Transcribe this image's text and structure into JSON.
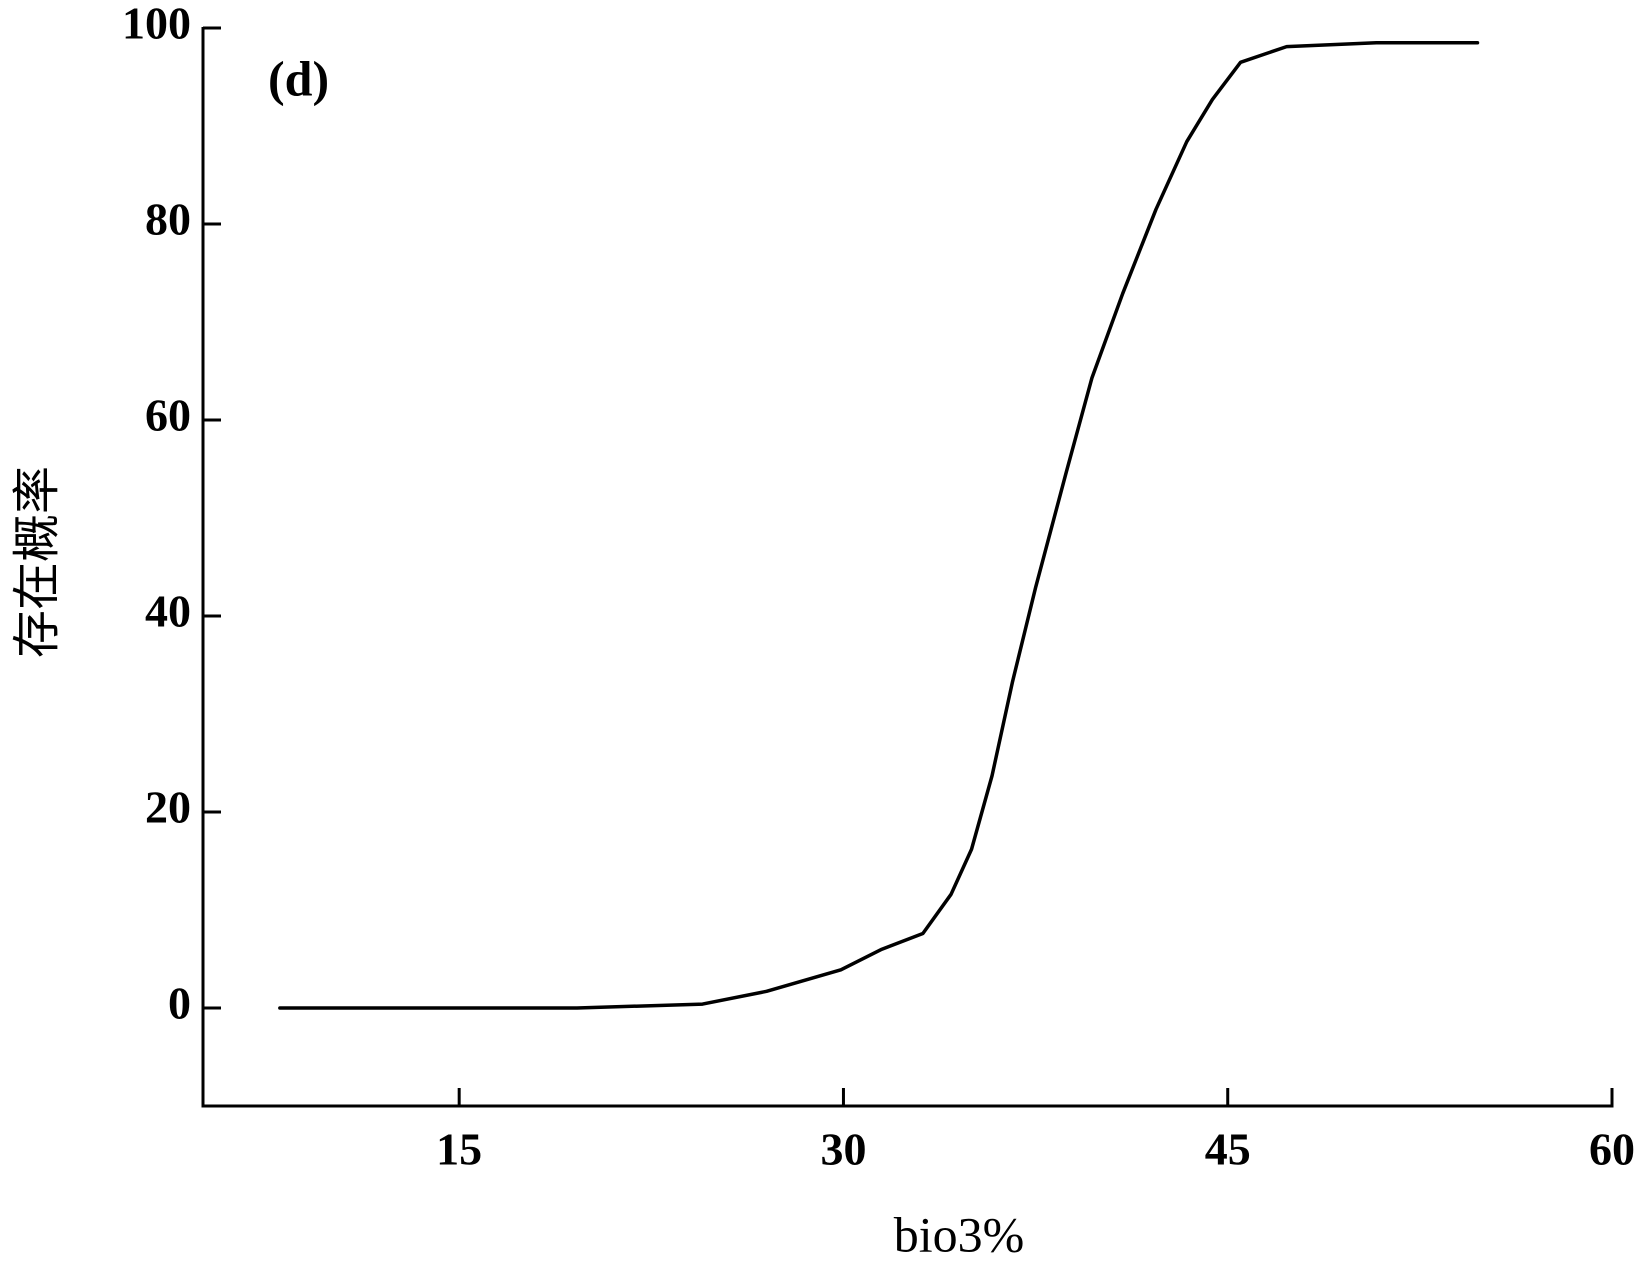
{
  "chart_data": {
    "type": "line",
    "annotation": "(d)",
    "x_label": "bio3%",
    "y_label": "存在概率",
    "xlim": [
      5,
      60
    ],
    "xticks": [
      15,
      30,
      45,
      60
    ],
    "ylim": [
      -10,
      100
    ],
    "yticks": [
      0,
      20,
      40,
      60,
      80,
      100
    ],
    "color": "#000000",
    "x": [
      8,
      19.6,
      24.5,
      27,
      29.9,
      31.5,
      33.1,
      34.2,
      35,
      35.8,
      36.6,
      37.5,
      38.7,
      39.7,
      40.9,
      42.2,
      43.4,
      44.4,
      45.5,
      47.3,
      50.8,
      54.75
    ],
    "values": [
      0,
      0,
      0.4,
      1.7,
      3.9,
      6,
      7.6,
      11.6,
      16.2,
      23.7,
      33.3,
      42.9,
      54.7,
      64.3,
      72.9,
      81.5,
      88.4,
      92.7,
      96.5,
      98.1,
      98.5,
      98.5
    ]
  }
}
